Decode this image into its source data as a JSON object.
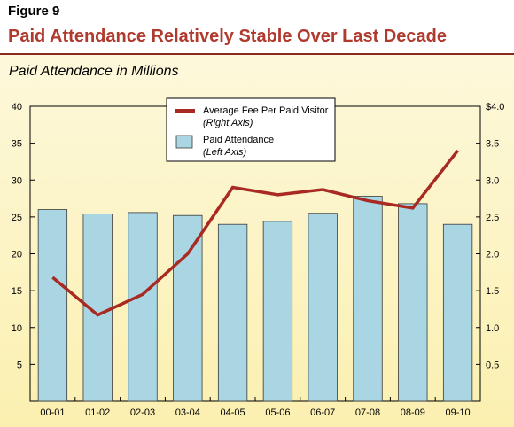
{
  "figure_label": "Figure 9",
  "title": "Paid Attendance Relatively Stable Over Last Decade",
  "subtitle": "Paid Attendance in Millions",
  "colors": {
    "title": "#b03a2e",
    "bar_fill": "#a9d6e2",
    "bar_stroke": "#3a3a3a",
    "line": "#a82a22"
  },
  "chart_data": {
    "type": "bar",
    "categories": [
      "00-01",
      "01-02",
      "02-03",
      "03-04",
      "04-05",
      "05-06",
      "06-07",
      "07-08",
      "08-09",
      "09-10"
    ],
    "series": [
      {
        "name": "Paid Attendance",
        "axis_note": "(Left Axis)",
        "type": "bar",
        "values": [
          26.0,
          25.4,
          25.6,
          25.2,
          24.0,
          24.4,
          25.5,
          27.8,
          26.8,
          24.0
        ]
      },
      {
        "name": "Average Fee Per Paid Visitor",
        "axis_note": "(Right Axis)",
        "type": "line",
        "values": [
          1.68,
          1.17,
          1.45,
          2.0,
          2.9,
          2.8,
          2.87,
          2.72,
          2.62,
          3.4
        ]
      }
    ],
    "left_axis": {
      "ylim": [
        0,
        40
      ],
      "ticks": [
        "5",
        "10",
        "15",
        "20",
        "25",
        "30",
        "35",
        "40"
      ],
      "tick_values": [
        5,
        10,
        15,
        20,
        25,
        30,
        35,
        40
      ]
    },
    "right_axis": {
      "ylim": [
        0,
        4
      ],
      "ticks": [
        "0.5",
        "1.0",
        "1.5",
        "2.0",
        "2.5",
        "3.0",
        "3.5",
        "$4.0"
      ],
      "tick_values": [
        0.5,
        1.0,
        1.5,
        2.0,
        2.5,
        3.0,
        3.5,
        4.0
      ]
    },
    "legend_position": "top-center",
    "grid": false
  }
}
